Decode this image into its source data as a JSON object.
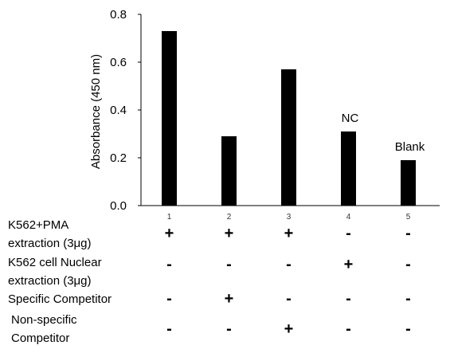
{
  "chart_data": {
    "type": "bar",
    "categories": [
      "1",
      "2",
      "3",
      "4",
      "5"
    ],
    "values": [
      0.73,
      0.29,
      0.57,
      0.31,
      0.19
    ],
    "ylabel": "Absorbance (450 nm)",
    "ylim": [
      0,
      0.8
    ],
    "yticks": [
      "0.0",
      "0.2",
      "0.4",
      "0.6",
      "0.8"
    ],
    "bar_color": "#000000",
    "grid": false,
    "annotations": [
      {
        "category": "4",
        "text": "NC"
      },
      {
        "category": "5",
        "text": "Blank"
      }
    ]
  },
  "conditions": [
    {
      "label_lines": [
        "K562+PMA",
        "extraction (3μg)"
      ],
      "signs": [
        "+",
        "+",
        "+",
        "-",
        "-"
      ]
    },
    {
      "label_lines": [
        "K562 cell Nuclear",
        "extraction (3μg)"
      ],
      "signs": [
        "-",
        "-",
        "-",
        "+",
        "-"
      ]
    },
    {
      "label_lines": [
        "Specific Competitor"
      ],
      "signs": [
        "-",
        "+",
        "-",
        "-",
        "-"
      ]
    },
    {
      "label_lines": [
        "Non-specific",
        "Competitor"
      ],
      "signs": [
        "-",
        "-",
        "+",
        "-",
        "-"
      ]
    }
  ]
}
